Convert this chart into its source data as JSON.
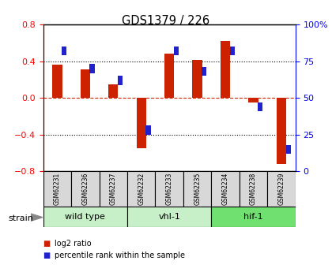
{
  "title": "GDS1379 / 226",
  "samples": [
    "GSM62231",
    "GSM62236",
    "GSM62237",
    "GSM62232",
    "GSM62233",
    "GSM62235",
    "GSM62234",
    "GSM62238",
    "GSM62239"
  ],
  "log2_ratio": [
    0.36,
    0.31,
    0.15,
    -0.55,
    0.48,
    0.41,
    0.62,
    -0.05,
    -0.72
  ],
  "percentile_rank": [
    82,
    70,
    62,
    28,
    82,
    68,
    82,
    44,
    15
  ],
  "groups": [
    {
      "label": "wild type",
      "start": 0,
      "end": 3,
      "color": "#c8f0c8"
    },
    {
      "label": "vhl-1",
      "start": 3,
      "end": 6,
      "color": "#c8f0c8"
    },
    {
      "label": "hif-1",
      "start": 6,
      "end": 9,
      "color": "#70e070"
    }
  ],
  "ylim_left": [
    -0.8,
    0.8
  ],
  "ylim_right": [
    0,
    100
  ],
  "yticks_left": [
    -0.8,
    -0.4,
    0.0,
    0.4,
    0.8
  ],
  "yticks_right": [
    0,
    25,
    50,
    75,
    100
  ],
  "bar_color_red": "#cc2200",
  "bar_color_blue": "#2222cc",
  "zero_line_color": "#cc2200",
  "grid_color": "#000000",
  "bar_width": 0.35,
  "dot_size": 0.05,
  "strain_label": "strain",
  "legend_red": "log2 ratio",
  "legend_blue": "percentile rank within the sample",
  "sample_bg": "#d8d8d8"
}
